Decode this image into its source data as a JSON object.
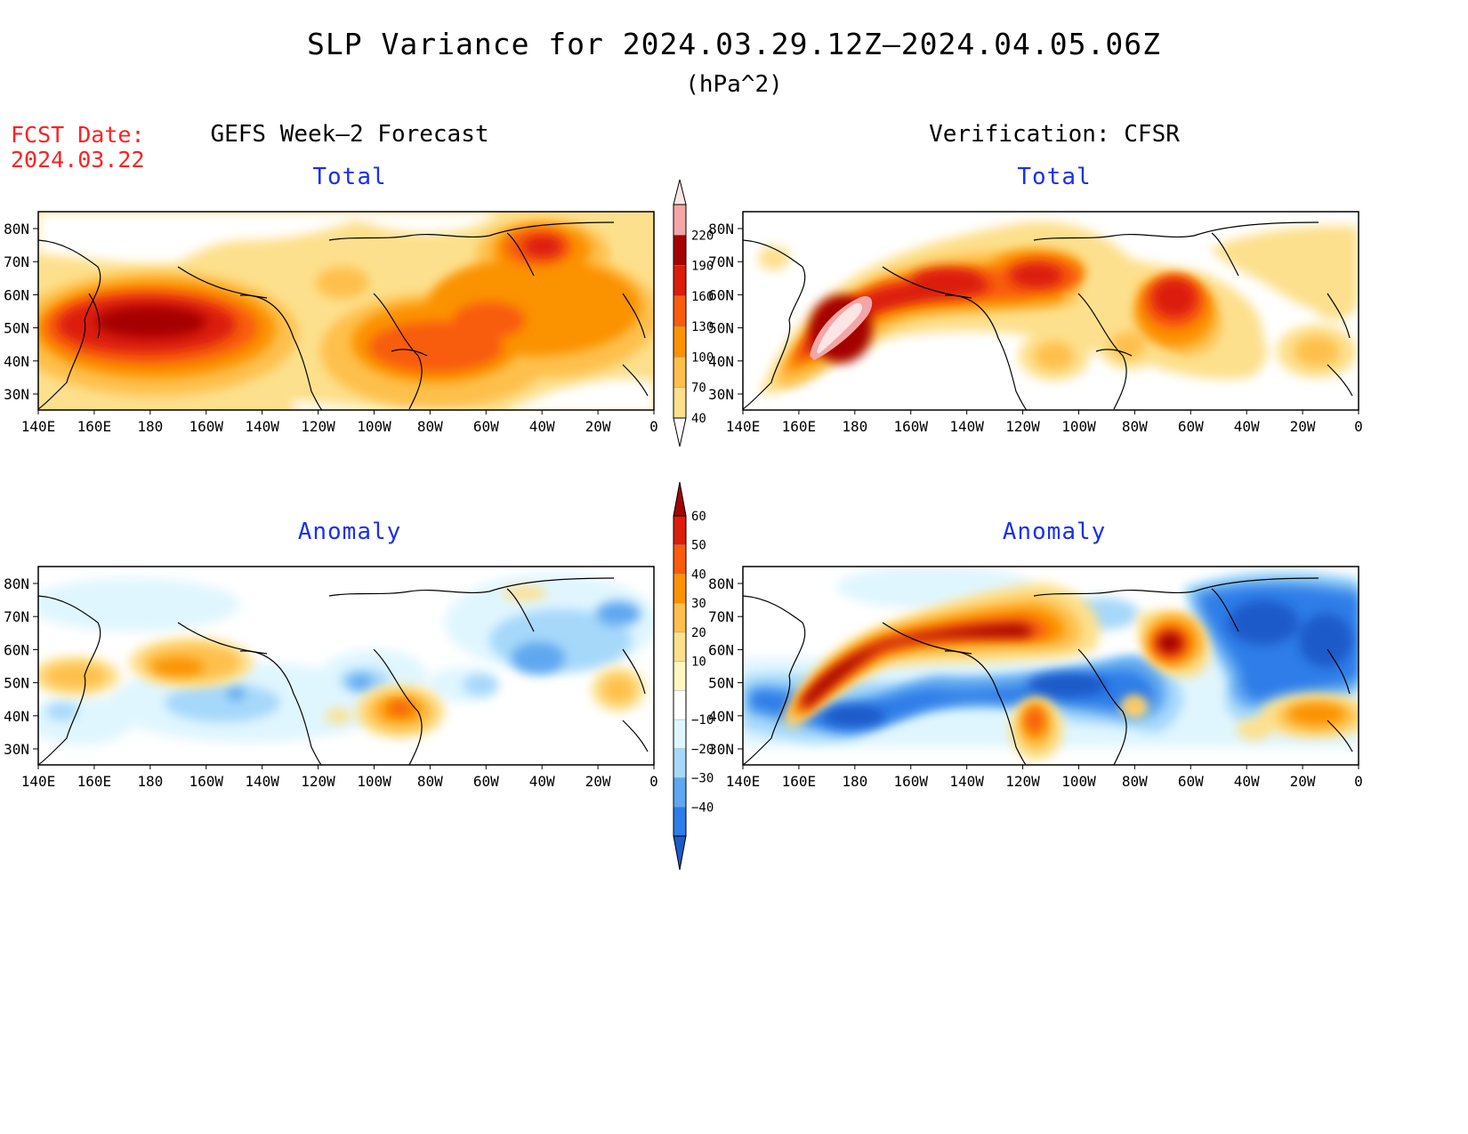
{
  "header": {
    "title": "SLP Variance for 2024.03.29.12Z–2024.04.05.06Z",
    "units": "(hPa^2)",
    "fcst_label": "FCST Date:",
    "fcst_date": "2024.03.22"
  },
  "panels": {
    "left_heading": "GEFS Week–2 Forecast",
    "right_heading": "Verification: CFSR",
    "total_label": "Total",
    "anomaly_label": "Anomaly"
  },
  "axes": {
    "lat_labels": [
      "80N",
      "70N",
      "60N",
      "50N",
      "40N",
      "30N"
    ],
    "lon_labels": [
      "140E",
      "160E",
      "180",
      "160W",
      "140W",
      "120W",
      "100W",
      "80W",
      "60W",
      "40W",
      "20W",
      "0"
    ]
  },
  "colorbars": {
    "total": {
      "levels": [
        "40",
        "70",
        "100",
        "130",
        "160",
        "190",
        "220"
      ],
      "colors": [
        "#fde08d",
        "#fec04c",
        "#fb9203",
        "#f85c0c",
        "#dc1d0b",
        "#a50300",
        "#f4a6a6",
        "#fde5e5"
      ]
    },
    "anomaly": {
      "levels": [
        "60",
        "50",
        "40",
        "30",
        "20",
        "10",
        "−10",
        "−20",
        "−30",
        "−40"
      ],
      "colors": [
        "#a50300",
        "#dc1d0b",
        "#f85c0c",
        "#fb9203",
        "#fec04c",
        "#fde08d",
        "#fff7c2",
        "#ffffff",
        "#e0f6ff",
        "#a6d8fa",
        "#5fa7f0",
        "#2e7de8",
        "#1c5ac9"
      ]
    }
  }
}
